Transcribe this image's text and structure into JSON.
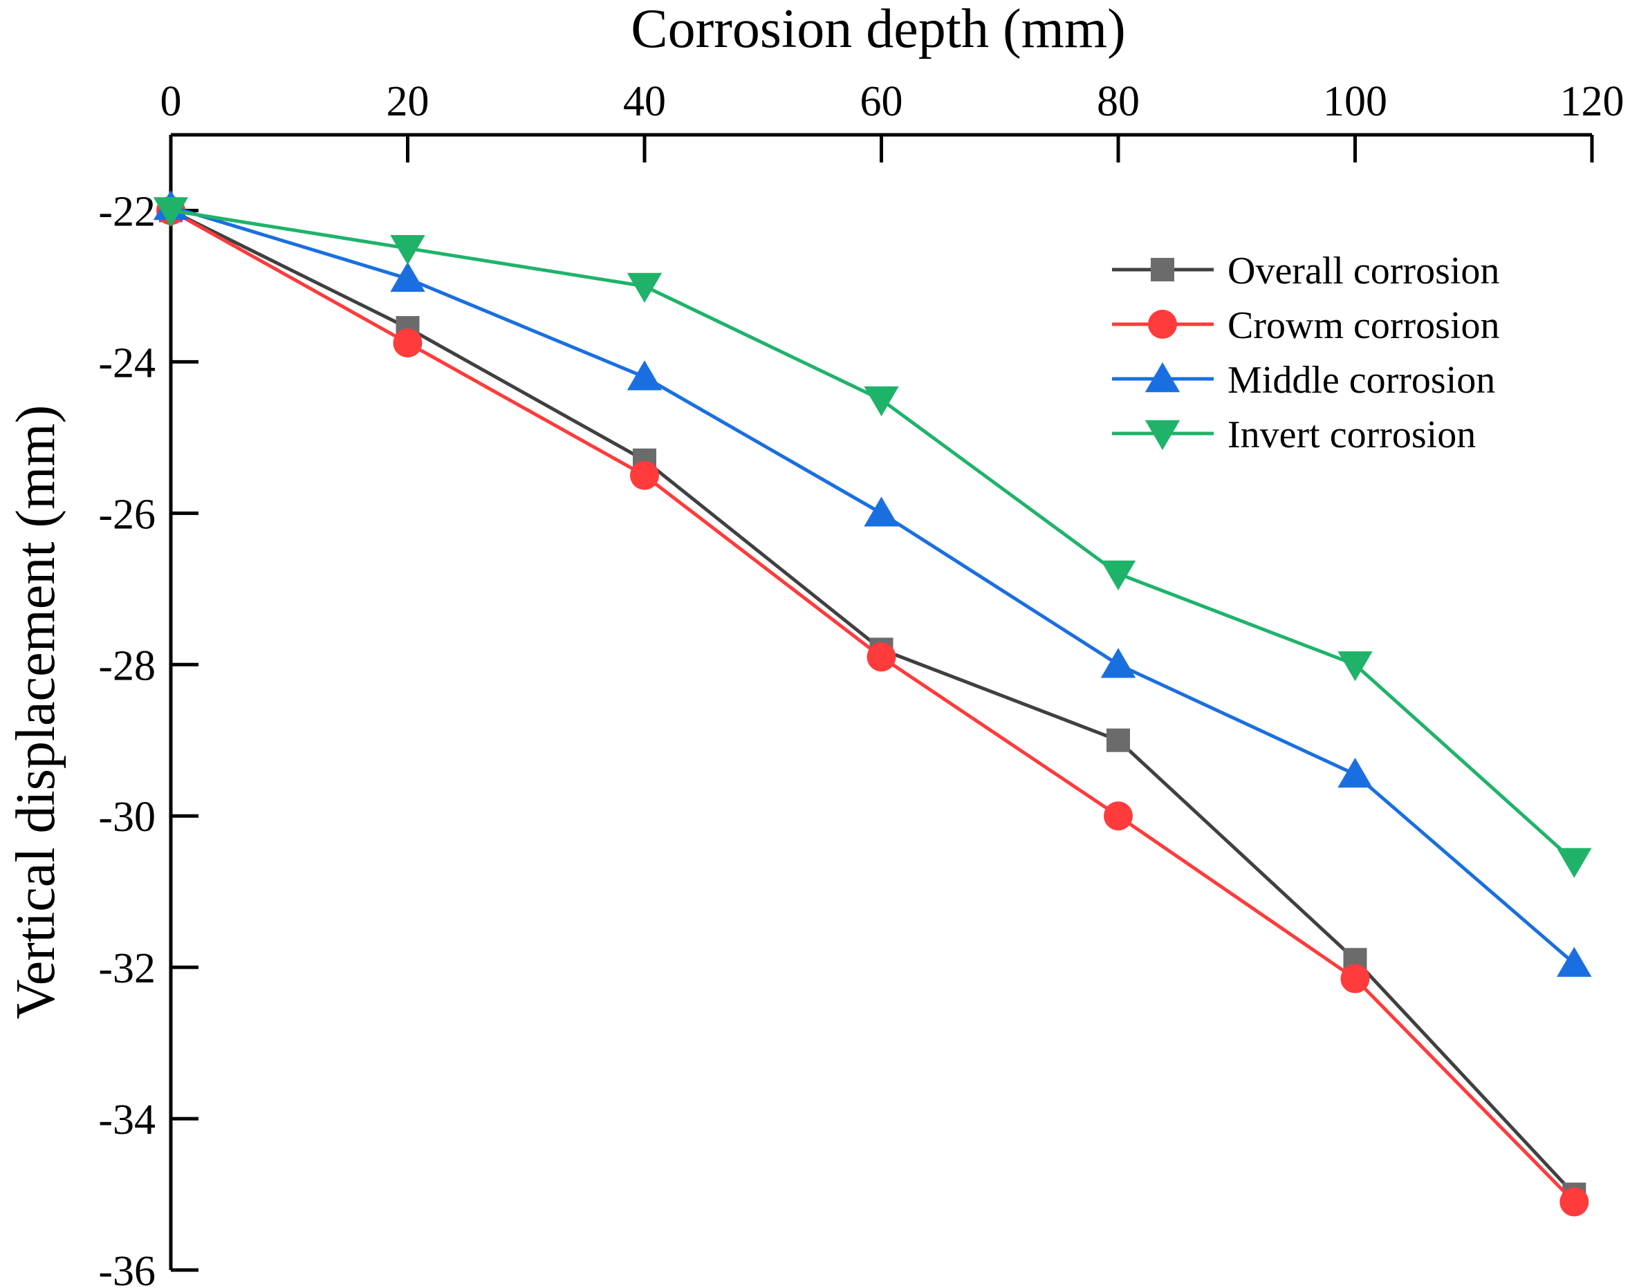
{
  "chart_data": {
    "type": "line",
    "title": "",
    "xlabel": "Corrosion depth (mm)",
    "ylabel": "Vertical displacement (mm)",
    "x_axis_position": "top",
    "xlim": [
      0,
      120
    ],
    "ylim": [
      -36,
      -21
    ],
    "xticks": [
      0,
      20,
      40,
      60,
      80,
      100,
      120
    ],
    "yticks": [
      -22,
      -24,
      -26,
      -28,
      -30,
      -32,
      -34,
      -36
    ],
    "x": [
      0,
      20,
      40,
      60,
      80,
      100,
      118.5
    ],
    "legend_position": "top-right",
    "series": [
      {
        "name": "Overall corrosion",
        "marker": "square",
        "color": "#6b6b6b",
        "line_color": "#404040",
        "values": [
          -22.0,
          -23.55,
          -25.3,
          -27.8,
          -29.0,
          -31.9,
          -35.0
        ]
      },
      {
        "name": "Crowm corrosion",
        "marker": "circle",
        "color": "#ff3b3b",
        "line_color": "#ff3b3b",
        "values": [
          -22.0,
          -23.75,
          -25.5,
          -27.9,
          -30.0,
          -32.15,
          -35.1
        ]
      },
      {
        "name": "Middle corrosion",
        "marker": "triangle-up",
        "color": "#1a6fe0",
        "line_color": "#1a6fe0",
        "values": [
          -21.95,
          -22.9,
          -24.2,
          -26.0,
          -28.0,
          -29.45,
          -31.95
        ]
      },
      {
        "name": "Invert corrosion",
        "marker": "triangle-down",
        "color": "#1fb36a",
        "line_color": "#1fb36a",
        "values": [
          -22.0,
          -22.5,
          -23.0,
          -24.5,
          -26.8,
          -28.0,
          -30.6
        ]
      }
    ]
  }
}
